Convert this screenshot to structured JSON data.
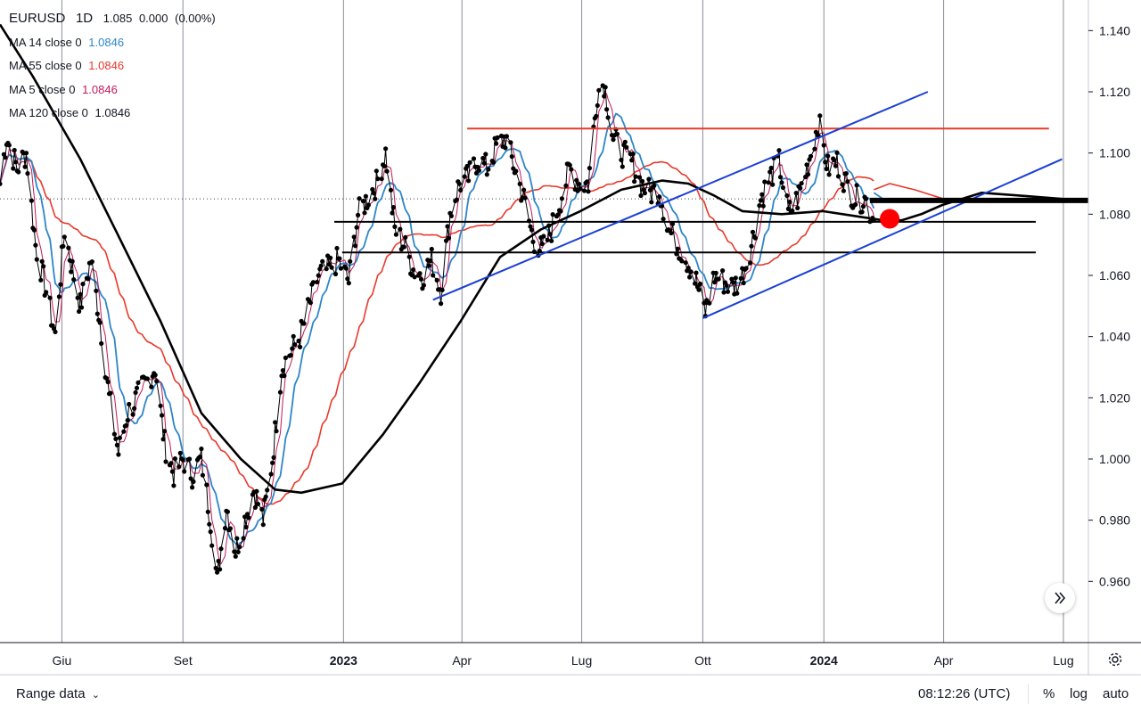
{
  "header": {
    "symbol": "EURUSD",
    "interval": "1D",
    "price": "1.085",
    "change": "0.000",
    "change_pct": "(0.00%)",
    "indicators": [
      {
        "label": "MA 14 close 0",
        "value": "1.0846",
        "color": "#2e86c8"
      },
      {
        "label": "MA 55 close 0",
        "value": "1.0846",
        "color": "#e8392b"
      },
      {
        "label": "MA 5 close 0",
        "value": "1.0846",
        "color": "#c2185b"
      },
      {
        "label": "MA 120 close 0",
        "value": "1.0846",
        "color": "#000000"
      }
    ]
  },
  "bottom_bar": {
    "range_label": "Range data",
    "clock": "08:12:26 (UTC)",
    "percent_label": "%",
    "log_label": "log",
    "auto_label": "auto"
  },
  "chart_data": {
    "type": "line",
    "title": "EURUSD 1D",
    "ylim": [
      0.94,
      1.15
    ],
    "y_ticks": [
      0.96,
      0.98,
      1.0,
      1.02,
      1.04,
      1.06,
      1.08,
      1.1,
      1.12,
      1.14
    ],
    "x_range": [
      "2022-04-15",
      "2024-07-20"
    ],
    "x_ticks": [
      {
        "label": "Giu",
        "date": "2022-06-01",
        "bold": false
      },
      {
        "label": "Set",
        "date": "2022-09-01",
        "bold": false
      },
      {
        "label": "2023",
        "date": "2023-01-01",
        "bold": true
      },
      {
        "label": "Apr",
        "date": "2023-04-01",
        "bold": false
      },
      {
        "label": "Lug",
        "date": "2023-07-01",
        "bold": false
      },
      {
        "label": "Ott",
        "date": "2023-10-01",
        "bold": false
      },
      {
        "label": "2024",
        "date": "2024-01-01",
        "bold": true
      },
      {
        "label": "Apr",
        "date": "2024-04-01",
        "bold": false
      },
      {
        "label": "Lug",
        "date": "2024-07-01",
        "bold": false
      }
    ],
    "current_price": 1.085,
    "price_anchors": [
      [
        "2022-04-15",
        1.09
      ],
      [
        "2022-04-20",
        1.105
      ],
      [
        "2022-04-28",
        1.095
      ],
      [
        "2022-05-05",
        1.1
      ],
      [
        "2022-05-12",
        1.07
      ],
      [
        "2022-05-20",
        1.055
      ],
      [
        "2022-05-27",
        1.04
      ],
      [
        "2022-06-03",
        1.075
      ],
      [
        "2022-06-10",
        1.06
      ],
      [
        "2022-06-15",
        1.05
      ],
      [
        "2022-06-23",
        1.065
      ],
      [
        "2022-06-30",
        1.045
      ],
      [
        "2022-07-07",
        1.02
      ],
      [
        "2022-07-14",
        1.002
      ],
      [
        "2022-07-21",
        1.015
      ],
      [
        "2022-07-28",
        1.02
      ],
      [
        "2022-08-04",
        1.025
      ],
      [
        "2022-08-11",
        1.03
      ],
      [
        "2022-08-18",
        1.005
      ],
      [
        "2022-08-25",
        0.995
      ],
      [
        "2022-09-01",
        1.0
      ],
      [
        "2022-09-08",
        0.995
      ],
      [
        "2022-09-15",
        1.0
      ],
      [
        "2022-09-22",
        0.98
      ],
      [
        "2022-09-27",
        0.96
      ],
      [
        "2022-10-04",
        0.985
      ],
      [
        "2022-10-11",
        0.97
      ],
      [
        "2022-10-18",
        0.98
      ],
      [
        "2022-10-25",
        0.99
      ],
      [
        "2022-11-01",
        0.98
      ],
      [
        "2022-11-08",
        1.0
      ],
      [
        "2022-11-15",
        1.03
      ],
      [
        "2022-11-22",
        1.035
      ],
      [
        "2022-11-29",
        1.04
      ],
      [
        "2022-12-06",
        1.05
      ],
      [
        "2022-12-13",
        1.06
      ],
      [
        "2022-12-20",
        1.062
      ],
      [
        "2022-12-28",
        1.065
      ],
      [
        "2023-01-05",
        1.058
      ],
      [
        "2023-01-12",
        1.08
      ],
      [
        "2023-01-19",
        1.085
      ],
      [
        "2023-01-26",
        1.09
      ],
      [
        "2023-02-02",
        1.1
      ],
      [
        "2023-02-09",
        1.075
      ],
      [
        "2023-02-16",
        1.07
      ],
      [
        "2023-02-23",
        1.062
      ],
      [
        "2023-03-02",
        1.06
      ],
      [
        "2023-03-09",
        1.065
      ],
      [
        "2023-03-16",
        1.055
      ],
      [
        "2023-03-23",
        1.08
      ],
      [
        "2023-03-30",
        1.09
      ],
      [
        "2023-04-06",
        1.092
      ],
      [
        "2023-04-13",
        1.098
      ],
      [
        "2023-04-20",
        1.095
      ],
      [
        "2023-04-27",
        1.102
      ],
      [
        "2023-05-04",
        1.105
      ],
      [
        "2023-05-11",
        1.095
      ],
      [
        "2023-05-18",
        1.085
      ],
      [
        "2023-05-25",
        1.072
      ],
      [
        "2023-06-01",
        1.068
      ],
      [
        "2023-06-08",
        1.075
      ],
      [
        "2023-06-15",
        1.085
      ],
      [
        "2023-06-22",
        1.095
      ],
      [
        "2023-06-29",
        1.09
      ],
      [
        "2023-07-06",
        1.09
      ],
      [
        "2023-07-13",
        1.12
      ],
      [
        "2023-07-18",
        1.123
      ],
      [
        "2023-07-25",
        1.105
      ],
      [
        "2023-08-01",
        1.1
      ],
      [
        "2023-08-08",
        1.097
      ],
      [
        "2023-08-15",
        1.09
      ],
      [
        "2023-08-22",
        1.087
      ],
      [
        "2023-08-29",
        1.088
      ],
      [
        "2023-09-05",
        1.075
      ],
      [
        "2023-09-12",
        1.07
      ],
      [
        "2023-09-19",
        1.065
      ],
      [
        "2023-09-26",
        1.058
      ],
      [
        "2023-10-03",
        1.048
      ],
      [
        "2023-10-10",
        1.06
      ],
      [
        "2023-10-17",
        1.058
      ],
      [
        "2023-10-24",
        1.056
      ],
      [
        "2023-10-31",
        1.06
      ],
      [
        "2023-11-07",
        1.07
      ],
      [
        "2023-11-14",
        1.085
      ],
      [
        "2023-11-21",
        1.092
      ],
      [
        "2023-11-28",
        1.097
      ],
      [
        "2023-12-05",
        1.08
      ],
      [
        "2023-12-12",
        1.085
      ],
      [
        "2023-12-19",
        1.095
      ],
      [
        "2023-12-28",
        1.11
      ],
      [
        "2024-01-04",
        1.095
      ],
      [
        "2024-01-11",
        1.097
      ],
      [
        "2024-01-18",
        1.09
      ],
      [
        "2024-01-25",
        1.085
      ],
      [
        "2024-02-01",
        1.085
      ],
      [
        "2024-02-08",
        1.078
      ]
    ],
    "ma120": [
      [
        "2022-04-15",
        1.142
      ],
      [
        "2022-05-10",
        1.125
      ],
      [
        "2022-06-15",
        1.098
      ],
      [
        "2022-07-15",
        1.072
      ],
      [
        "2022-08-15",
        1.045
      ],
      [
        "2022-09-15",
        1.015
      ],
      [
        "2022-10-15",
        1.0
      ],
      [
        "2022-11-10",
        0.99
      ],
      [
        "2022-11-30",
        0.989
      ],
      [
        "2022-12-31",
        0.992
      ],
      [
        "2023-01-31",
        1.008
      ],
      [
        "2023-02-28",
        1.025
      ],
      [
        "2023-03-31",
        1.045
      ],
      [
        "2023-04-30",
        1.066
      ],
      [
        "2023-05-31",
        1.075
      ],
      [
        "2023-06-30",
        1.081
      ],
      [
        "2023-07-31",
        1.088
      ],
      [
        "2023-08-31",
        1.091
      ],
      [
        "2023-09-20",
        1.09
      ],
      [
        "2023-10-10",
        1.086
      ],
      [
        "2023-10-31",
        1.081
      ],
      [
        "2023-11-30",
        1.08
      ],
      [
        "2023-12-31",
        1.081
      ],
      [
        "2024-01-31",
        1.079
      ],
      [
        "2024-02-15",
        1.078
      ],
      [
        "2024-02-29",
        1.078
      ],
      [
        "2024-03-15",
        1.08
      ],
      [
        "2024-03-31",
        1.083
      ],
      [
        "2024-04-30",
        1.087
      ],
      [
        "2024-05-31",
        1.086
      ],
      [
        "2024-06-30",
        1.085
      ]
    ],
    "ma55_extension": [
      [
        "2024-02-08",
        1.088
      ],
      [
        "2024-02-20",
        1.09
      ],
      [
        "2024-03-10",
        1.088
      ],
      [
        "2024-04-01",
        1.085
      ]
    ],
    "ma14_extension": [
      [
        "2024-02-08",
        1.087
      ],
      [
        "2024-02-15",
        1.085
      ],
      [
        "2024-02-25",
        1.084
      ]
    ],
    "annotations": [
      {
        "kind": "hline",
        "color": "#e8392b",
        "y": 1.108,
        "from": "2023-04-05",
        "to": "2024-06-20"
      },
      {
        "kind": "hline",
        "color": "#000000",
        "y": 1.0775,
        "from": "2022-12-25",
        "to": "2024-06-10"
      },
      {
        "kind": "hline",
        "color": "#000000",
        "y": 1.0675,
        "from": "2022-12-31",
        "to": "2024-06-10"
      },
      {
        "kind": "trend",
        "color": "#1a3fd4",
        "from": [
          "2023-03-10",
          1.052
        ],
        "to": [
          "2024-03-20",
          1.12
        ]
      },
      {
        "kind": "trend",
        "color": "#1a3fd4",
        "from": [
          "2023-10-01",
          1.046
        ],
        "to": [
          "2024-06-30",
          1.098
        ]
      },
      {
        "kind": "thick-line",
        "color": "#000000",
        "y": 1.0845,
        "from": "2024-02-05",
        "to": "2024-07-31"
      },
      {
        "kind": "dot",
        "color": "#ff0000",
        "date": "2024-02-20",
        "y": 1.0785
      }
    ]
  }
}
